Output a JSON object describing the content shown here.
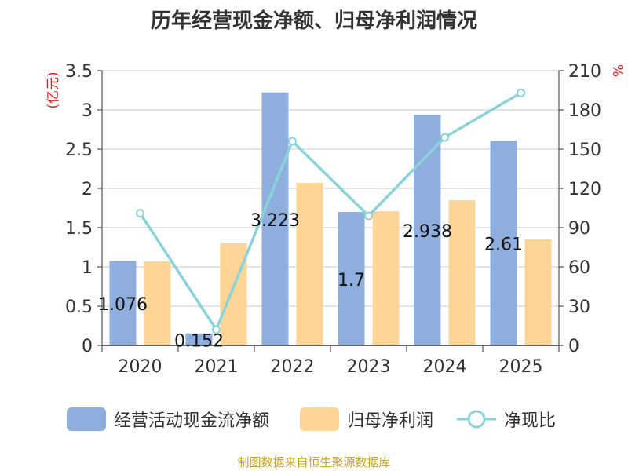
{
  "chart_data": {
    "type": "bar",
    "title": "历年经营现金净额、归母净利润情况",
    "categories": [
      "2020",
      "2021",
      "2022",
      "2023",
      "2024",
      "2025"
    ],
    "series": [
      {
        "name": "经营活动现金流净额",
        "type": "bar",
        "axis": "left",
        "color": "#8eaedd",
        "values": [
          1.076,
          0.152,
          3.223,
          1.7,
          2.938,
          2.61
        ],
        "labels": [
          "1.076",
          "0.152",
          "3.223",
          "1.7",
          "2.938",
          "2.61"
        ]
      },
      {
        "name": "归母净利润",
        "type": "bar",
        "axis": "left",
        "color": "#fdd596",
        "values": [
          1.07,
          1.3,
          2.07,
          1.71,
          1.85,
          1.35
        ]
      },
      {
        "name": "净现比",
        "type": "line",
        "axis": "right",
        "color": "#8ad3d8",
        "values": [
          101,
          12,
          156,
          99,
          159,
          193
        ]
      }
    ],
    "ylabel_left": "(亿元)",
    "ylabel_right": "%",
    "ylim_left": [
      0,
      3.5
    ],
    "ylim_right": [
      0,
      210
    ],
    "yticks_left": [
      "0",
      "0.5",
      "1",
      "1.5",
      "2",
      "2.5",
      "3",
      "3.5"
    ],
    "yticks_right": [
      "0",
      "30",
      "60",
      "90",
      "120",
      "150",
      "180",
      "210"
    ],
    "grid": true,
    "legend_position": "bottom"
  },
  "source": "制图数据来自恒生聚源数据库"
}
